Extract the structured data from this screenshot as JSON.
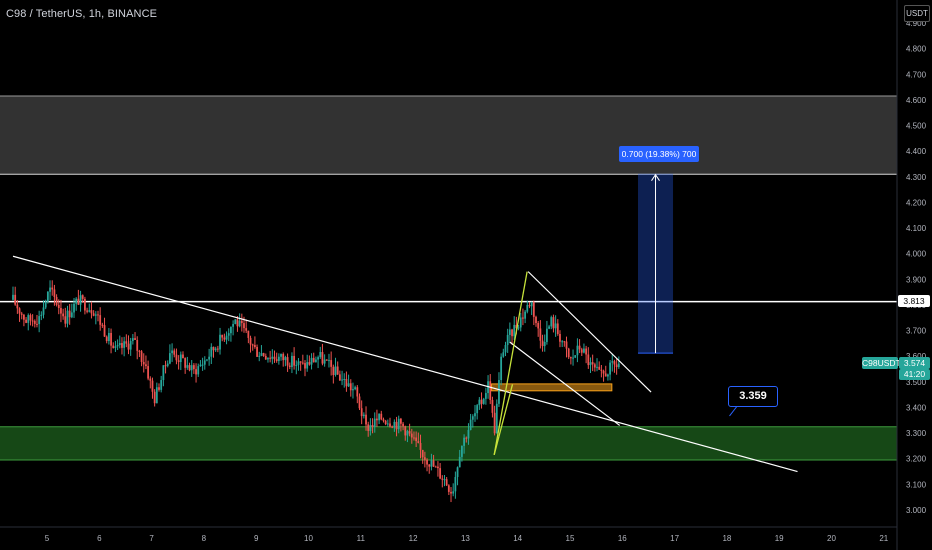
{
  "header": {
    "title": "C98 / TetherUS, 1h, BINANCE",
    "currency": "USDT"
  },
  "price_tags": {
    "level_label": "3.813",
    "symbol_label": "C98USDT",
    "last_price": "3.574",
    "countdown": "41:20"
  },
  "annotations": {
    "measure_label": "0.700 (19.38%) 700",
    "target_bubble": "3.359"
  },
  "colors": {
    "background": "#000000",
    "up_candle": "#26a69a",
    "down_candle": "#ef5350",
    "resistance_zone": "#434343",
    "support_zone": "#1c5a1c",
    "order_block": "#f7a21b",
    "measure": "#2962ff",
    "trendline": "#ffffff",
    "impulse_line": "#c6e23a"
  },
  "chart_data": {
    "type": "candlestick",
    "symbol": "C98 / TetherUS",
    "interval": "1h",
    "exchange": "BINANCE",
    "grid": false,
    "y_axis": {
      "ticks": [
        "4.900",
        "4.800",
        "4.700",
        "4.600",
        "4.500",
        "4.400",
        "4.300",
        "4.200",
        "4.100",
        "4.000",
        "3.900",
        "3.800",
        "3.700",
        "3.600",
        "3.500",
        "3.400",
        "3.300",
        "3.200",
        "3.100",
        "3.000"
      ],
      "range": [
        2.975,
        4.925
      ],
      "side": "right"
    },
    "x_axis": {
      "ticks": [
        "5",
        "6",
        "7",
        "8",
        "9",
        "10",
        "11",
        "12",
        "13",
        "14",
        "15",
        "16",
        "17",
        "18",
        "19",
        "20",
        "21"
      ],
      "range_days": [
        4.35,
        21.18
      ]
    },
    "zones": [
      {
        "name": "resistance",
        "from": 4.31,
        "to": 4.615
      },
      {
        "name": "support",
        "from": 3.195,
        "to": 3.325
      },
      {
        "name": "order-block",
        "from": 3.465,
        "to": 3.492,
        "x_from_day": 13.5,
        "x_to_day": 15.8
      }
    ],
    "horizontal_levels": [
      {
        "value": 3.813
      }
    ],
    "trendlines": [
      {
        "name": "long-descending",
        "points": [
          [
            4.35,
            3.99
          ],
          [
            19.35,
            3.15
          ]
        ]
      },
      {
        "name": "wedge-upper",
        "points": [
          [
            14.2,
            3.93
          ],
          [
            16.55,
            3.46
          ]
        ]
      },
      {
        "name": "wedge-lower",
        "points": [
          [
            13.85,
            3.655
          ],
          [
            15.95,
            3.33
          ]
        ]
      },
      {
        "name": "impulse-up",
        "points": [
          [
            13.55,
            3.215
          ],
          [
            14.18,
            3.93
          ]
        ]
      },
      {
        "name": "impulse-diag",
        "points": [
          [
            13.55,
            3.215
          ],
          [
            13.9,
            3.49
          ]
        ]
      }
    ],
    "measure": {
      "from": 3.612,
      "to": 4.312,
      "x_from_day": 16.3,
      "x_to_day": 16.97,
      "change": 0.7,
      "percent": 19.38
    },
    "target": {
      "value": 3.359,
      "x_day": 18.05
    },
    "series": {
      "anchors": [
        [
          4.35,
          3.82
        ],
        [
          4.6,
          3.74
        ],
        [
          4.85,
          3.75
        ],
        [
          5.05,
          3.86
        ],
        [
          5.35,
          3.75
        ],
        [
          5.6,
          3.82
        ],
        [
          5.9,
          3.78
        ],
        [
          6.3,
          3.62
        ],
        [
          6.65,
          3.66
        ],
        [
          6.9,
          3.56
        ],
        [
          7.05,
          3.43
        ],
        [
          7.35,
          3.62
        ],
        [
          7.6,
          3.58
        ],
        [
          7.8,
          3.54
        ],
        [
          8.0,
          3.58
        ],
        [
          8.3,
          3.66
        ],
        [
          8.6,
          3.74
        ],
        [
          8.75,
          3.7
        ],
        [
          9.0,
          3.62
        ],
        [
          9.3,
          3.6
        ],
        [
          9.55,
          3.59
        ],
        [
          9.9,
          3.56
        ],
        [
          10.2,
          3.6
        ],
        [
          10.6,
          3.52
        ],
        [
          10.9,
          3.46
        ],
        [
          11.1,
          3.32
        ],
        [
          11.4,
          3.36
        ],
        [
          11.8,
          3.33
        ],
        [
          12.1,
          3.24
        ],
        [
          12.35,
          3.18
        ],
        [
          12.6,
          3.12
        ],
        [
          12.75,
          3.07
        ],
        [
          12.9,
          3.24
        ],
        [
          13.1,
          3.34
        ],
        [
          13.3,
          3.42
        ],
        [
          13.45,
          3.5
        ],
        [
          13.55,
          3.3
        ],
        [
          13.7,
          3.62
        ],
        [
          13.9,
          3.7
        ],
        [
          14.1,
          3.76
        ],
        [
          14.25,
          3.82
        ],
        [
          14.45,
          3.65
        ],
        [
          14.65,
          3.74
        ],
        [
          14.85,
          3.66
        ],
        [
          15.0,
          3.58
        ],
        [
          15.2,
          3.64
        ],
        [
          15.4,
          3.56
        ],
        [
          15.6,
          3.52
        ],
        [
          15.75,
          3.55
        ],
        [
          15.95,
          3.574
        ]
      ]
    }
  }
}
